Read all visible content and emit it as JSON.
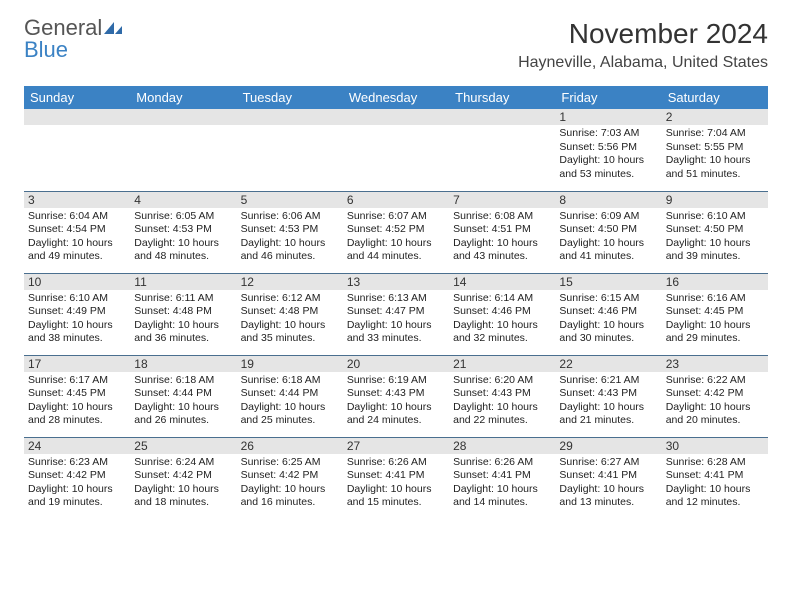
{
  "logo": {
    "text1": "General",
    "text2": "Blue"
  },
  "title": "November 2024",
  "location": "Hayneville, Alabama, United States",
  "colors": {
    "header_bg": "#3b82c4",
    "header_text": "#ffffff",
    "day_bg": "#e5e5e5",
    "border": "#4a6f8f",
    "logo_gray": "#555555",
    "logo_blue": "#3b82c4"
  },
  "daysOfWeek": [
    "Sunday",
    "Monday",
    "Tuesday",
    "Wednesday",
    "Thursday",
    "Friday",
    "Saturday"
  ],
  "cells": [
    [
      {
        "empty": true
      },
      {
        "empty": true
      },
      {
        "empty": true
      },
      {
        "empty": true
      },
      {
        "empty": true
      },
      {
        "day": "1",
        "sunrise": "Sunrise: 7:03 AM",
        "sunset": "Sunset: 5:56 PM",
        "daylight": "Daylight: 10 hours and 53 minutes."
      },
      {
        "day": "2",
        "sunrise": "Sunrise: 7:04 AM",
        "sunset": "Sunset: 5:55 PM",
        "daylight": "Daylight: 10 hours and 51 minutes."
      }
    ],
    [
      {
        "day": "3",
        "sunrise": "Sunrise: 6:04 AM",
        "sunset": "Sunset: 4:54 PM",
        "daylight": "Daylight: 10 hours and 49 minutes."
      },
      {
        "day": "4",
        "sunrise": "Sunrise: 6:05 AM",
        "sunset": "Sunset: 4:53 PM",
        "daylight": "Daylight: 10 hours and 48 minutes."
      },
      {
        "day": "5",
        "sunrise": "Sunrise: 6:06 AM",
        "sunset": "Sunset: 4:53 PM",
        "daylight": "Daylight: 10 hours and 46 minutes."
      },
      {
        "day": "6",
        "sunrise": "Sunrise: 6:07 AM",
        "sunset": "Sunset: 4:52 PM",
        "daylight": "Daylight: 10 hours and 44 minutes."
      },
      {
        "day": "7",
        "sunrise": "Sunrise: 6:08 AM",
        "sunset": "Sunset: 4:51 PM",
        "daylight": "Daylight: 10 hours and 43 minutes."
      },
      {
        "day": "8",
        "sunrise": "Sunrise: 6:09 AM",
        "sunset": "Sunset: 4:50 PM",
        "daylight": "Daylight: 10 hours and 41 minutes."
      },
      {
        "day": "9",
        "sunrise": "Sunrise: 6:10 AM",
        "sunset": "Sunset: 4:50 PM",
        "daylight": "Daylight: 10 hours and 39 minutes."
      }
    ],
    [
      {
        "day": "10",
        "sunrise": "Sunrise: 6:10 AM",
        "sunset": "Sunset: 4:49 PM",
        "daylight": "Daylight: 10 hours and 38 minutes."
      },
      {
        "day": "11",
        "sunrise": "Sunrise: 6:11 AM",
        "sunset": "Sunset: 4:48 PM",
        "daylight": "Daylight: 10 hours and 36 minutes."
      },
      {
        "day": "12",
        "sunrise": "Sunrise: 6:12 AM",
        "sunset": "Sunset: 4:48 PM",
        "daylight": "Daylight: 10 hours and 35 minutes."
      },
      {
        "day": "13",
        "sunrise": "Sunrise: 6:13 AM",
        "sunset": "Sunset: 4:47 PM",
        "daylight": "Daylight: 10 hours and 33 minutes."
      },
      {
        "day": "14",
        "sunrise": "Sunrise: 6:14 AM",
        "sunset": "Sunset: 4:46 PM",
        "daylight": "Daylight: 10 hours and 32 minutes."
      },
      {
        "day": "15",
        "sunrise": "Sunrise: 6:15 AM",
        "sunset": "Sunset: 4:46 PM",
        "daylight": "Daylight: 10 hours and 30 minutes."
      },
      {
        "day": "16",
        "sunrise": "Sunrise: 6:16 AM",
        "sunset": "Sunset: 4:45 PM",
        "daylight": "Daylight: 10 hours and 29 minutes."
      }
    ],
    [
      {
        "day": "17",
        "sunrise": "Sunrise: 6:17 AM",
        "sunset": "Sunset: 4:45 PM",
        "daylight": "Daylight: 10 hours and 28 minutes."
      },
      {
        "day": "18",
        "sunrise": "Sunrise: 6:18 AM",
        "sunset": "Sunset: 4:44 PM",
        "daylight": "Daylight: 10 hours and 26 minutes."
      },
      {
        "day": "19",
        "sunrise": "Sunrise: 6:18 AM",
        "sunset": "Sunset: 4:44 PM",
        "daylight": "Daylight: 10 hours and 25 minutes."
      },
      {
        "day": "20",
        "sunrise": "Sunrise: 6:19 AM",
        "sunset": "Sunset: 4:43 PM",
        "daylight": "Daylight: 10 hours and 24 minutes."
      },
      {
        "day": "21",
        "sunrise": "Sunrise: 6:20 AM",
        "sunset": "Sunset: 4:43 PM",
        "daylight": "Daylight: 10 hours and 22 minutes."
      },
      {
        "day": "22",
        "sunrise": "Sunrise: 6:21 AM",
        "sunset": "Sunset: 4:43 PM",
        "daylight": "Daylight: 10 hours and 21 minutes."
      },
      {
        "day": "23",
        "sunrise": "Sunrise: 6:22 AM",
        "sunset": "Sunset: 4:42 PM",
        "daylight": "Daylight: 10 hours and 20 minutes."
      }
    ],
    [
      {
        "day": "24",
        "sunrise": "Sunrise: 6:23 AM",
        "sunset": "Sunset: 4:42 PM",
        "daylight": "Daylight: 10 hours and 19 minutes."
      },
      {
        "day": "25",
        "sunrise": "Sunrise: 6:24 AM",
        "sunset": "Sunset: 4:42 PM",
        "daylight": "Daylight: 10 hours and 18 minutes."
      },
      {
        "day": "26",
        "sunrise": "Sunrise: 6:25 AM",
        "sunset": "Sunset: 4:42 PM",
        "daylight": "Daylight: 10 hours and 16 minutes."
      },
      {
        "day": "27",
        "sunrise": "Sunrise: 6:26 AM",
        "sunset": "Sunset: 4:41 PM",
        "daylight": "Daylight: 10 hours and 15 minutes."
      },
      {
        "day": "28",
        "sunrise": "Sunrise: 6:26 AM",
        "sunset": "Sunset: 4:41 PM",
        "daylight": "Daylight: 10 hours and 14 minutes."
      },
      {
        "day": "29",
        "sunrise": "Sunrise: 6:27 AM",
        "sunset": "Sunset: 4:41 PM",
        "daylight": "Daylight: 10 hours and 13 minutes."
      },
      {
        "day": "30",
        "sunrise": "Sunrise: 6:28 AM",
        "sunset": "Sunset: 4:41 PM",
        "daylight": "Daylight: 10 hours and 12 minutes."
      }
    ]
  ]
}
